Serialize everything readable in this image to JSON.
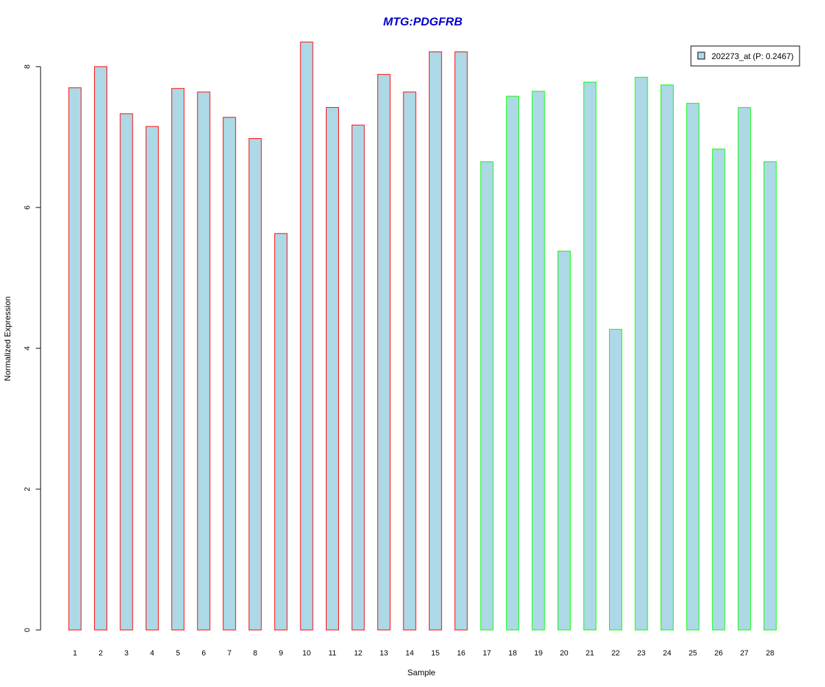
{
  "chart_data": {
    "type": "bar",
    "title": "MTG:PDGFRB",
    "xlabel": "Sample",
    "ylabel": "Normalized Expression",
    "categories": [
      "1",
      "2",
      "3",
      "4",
      "5",
      "6",
      "7",
      "8",
      "9",
      "10",
      "11",
      "12",
      "13",
      "14",
      "15",
      "16",
      "17",
      "18",
      "19",
      "20",
      "21",
      "22",
      "23",
      "24",
      "25",
      "26",
      "27",
      "28"
    ],
    "series": [
      {
        "name": "202273_at (P: 0.2467)",
        "values": [
          7.7,
          8.0,
          7.33,
          7.15,
          7.69,
          7.64,
          7.28,
          6.98,
          5.63,
          8.35,
          7.42,
          7.17,
          7.89,
          7.64,
          8.21,
          8.21,
          6.65,
          7.58,
          7.65,
          5.38,
          7.78,
          4.27,
          7.85,
          7.74,
          7.48,
          6.83,
          7.42,
          6.65
        ]
      }
    ],
    "group_border_colors": [
      "#ff0000",
      "#ff0000",
      "#ff0000",
      "#ff0000",
      "#ff0000",
      "#ff0000",
      "#ff0000",
      "#ff0000",
      "#ff0000",
      "#ff0000",
      "#ff0000",
      "#ff0000",
      "#ff0000",
      "#ff0000",
      "#ff0000",
      "#ff0000",
      "#00ff00",
      "#00ff00",
      "#00ff00",
      "#00ff00",
      "#00ff00",
      "#00ff00",
      "#00ff00",
      "#00ff00",
      "#00ff00",
      "#00ff00",
      "#00ff00",
      "#00ff00"
    ],
    "bar_fill": "#add8e6",
    "title_color": "#0000cd",
    "y_ticks": [
      0,
      2,
      4,
      6,
      8
    ],
    "ylim": [
      0,
      8.35
    ],
    "grid": false,
    "legend_position": "top-right"
  }
}
